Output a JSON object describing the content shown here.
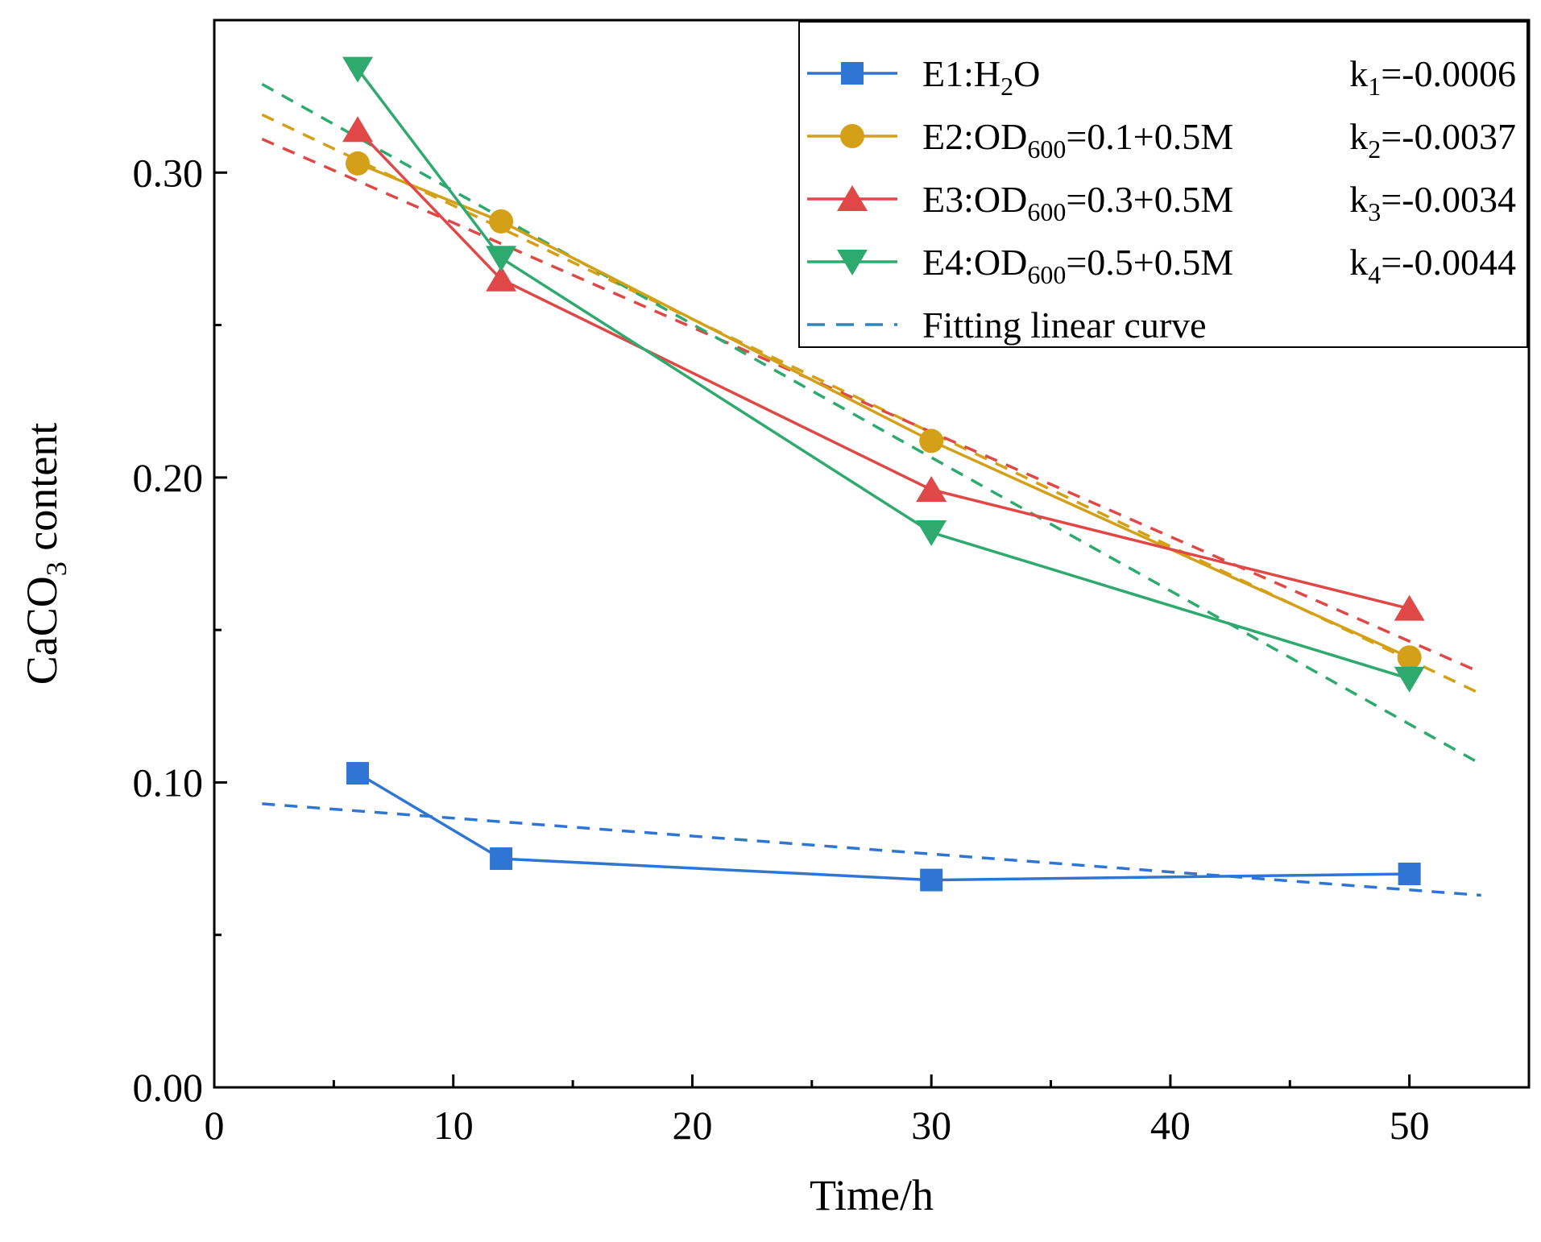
{
  "chart_data": {
    "type": "line",
    "title": "",
    "xlabel": "Time/h",
    "ylabel": {
      "base": "CaCO",
      "sub": "3",
      "rest": " content"
    },
    "xlim": [
      0,
      55
    ],
    "ylim": [
      0,
      0.35
    ],
    "x_ticks": [
      0,
      10,
      20,
      30,
      40,
      50
    ],
    "x_tick_labels": [
      "0",
      "10",
      "20",
      "30",
      "40",
      "50"
    ],
    "x_minor_ticks": [
      5,
      15,
      25,
      35,
      45
    ],
    "y_ticks": [
      0,
      0.1,
      0.2,
      0.3
    ],
    "y_tick_labels": [
      "0.00",
      "0.10",
      "0.20",
      "0.30"
    ],
    "y_minor_ticks": [
      0.05,
      0.15,
      0.25
    ],
    "grid": false,
    "legend_position": "top-right",
    "x": [
      6,
      12,
      30,
      50
    ],
    "series": [
      {
        "name": "E1:H2O",
        "label_parts": [
          {
            "t": "E1:H"
          },
          {
            "t": "2",
            "sub": true
          },
          {
            "t": "O"
          }
        ],
        "k_label": {
          "base": "k",
          "sub": "1",
          "rest": "=-0.0006"
        },
        "color": "#2e75d4",
        "marker": "square",
        "values": [
          0.103,
          0.075,
          0.068,
          0.07
        ],
        "fit": {
          "x": [
            2,
            53
          ],
          "y": [
            0.093,
            0.063
          ]
        }
      },
      {
        "name": "E2:OD600=0.1+0.5M",
        "label_parts": [
          {
            "t": "E2:OD"
          },
          {
            "t": "600",
            "sub": true
          },
          {
            "t": "=0.1+0.5M"
          }
        ],
        "k_label": {
          "base": "k",
          "sub": "2",
          "rest": "=-0.0037"
        },
        "color": "#d4a017",
        "marker": "circle",
        "values": [
          0.303,
          0.284,
          0.212,
          0.141
        ],
        "fit": {
          "x": [
            2,
            53
          ],
          "y": [
            0.319,
            0.129
          ]
        }
      },
      {
        "name": "E3:OD600=0.3+0.5M",
        "label_parts": [
          {
            "t": "E3:OD"
          },
          {
            "t": "600",
            "sub": true
          },
          {
            "t": "=0.3+0.5M"
          }
        ],
        "k_label": {
          "base": "k",
          "sub": "3",
          "rest": "=-0.0034"
        },
        "color": "#e04848",
        "marker": "triangle-up",
        "values": [
          0.314,
          0.265,
          0.196,
          0.157
        ],
        "fit": {
          "x": [
            2,
            53
          ],
          "y": [
            0.311,
            0.136
          ]
        }
      },
      {
        "name": "E4:OD600=0.5+0.5M",
        "label_parts": [
          {
            "t": "E4:OD"
          },
          {
            "t": "600",
            "sub": true
          },
          {
            "t": "=0.5+0.5M"
          }
        ],
        "k_label": {
          "base": "k",
          "sub": "4",
          "rest": "=-0.0044"
        },
        "color": "#2eaa6e",
        "marker": "triangle-down",
        "values": [
          0.334,
          0.272,
          0.182,
          0.134
        ],
        "fit": {
          "x": [
            2,
            53
          ],
          "y": [
            0.329,
            0.106
          ]
        }
      }
    ],
    "fit_legend": {
      "label": "Fitting linear curve",
      "color": "#2e86c1"
    }
  }
}
